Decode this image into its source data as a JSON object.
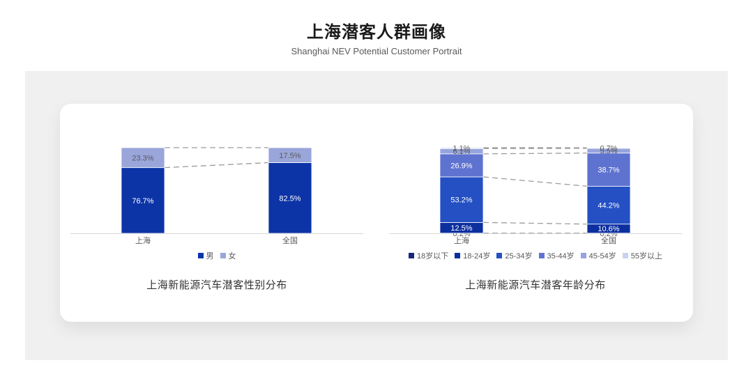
{
  "page": {
    "title": "上海潜客人群画像",
    "subtitle": "Shanghai NEV Potential Customer Portrait"
  },
  "theme": {
    "band_background": "#f0f0f1",
    "card_background": "#ffffff",
    "axis_color": "#d6d6d6",
    "dash_line_color": "#9c9c9c",
    "category_label_color": "#595959",
    "legend_text_color": "#595959",
    "caption_color": "#333333"
  },
  "chart_data": [
    {
      "type": "bar",
      "stacked": true,
      "title": "上海新能源汽车潜客性别分布",
      "categories": [
        "上海",
        "全国"
      ],
      "series": [
        {
          "name": "男",
          "values": [
            76.7,
            82.5
          ],
          "color": "#0d34a6",
          "label_color": "#ffffff"
        },
        {
          "name": "女",
          "values": [
            23.3,
            17.5
          ],
          "color": "#9aa6da",
          "label_color": "#595959"
        }
      ],
      "ylim": [
        0,
        100
      ],
      "value_suffix": "%",
      "grid": false,
      "legend_position": "bottom",
      "connector_lines": "dashed between cumulative segment boundaries"
    },
    {
      "type": "bar",
      "stacked": true,
      "title": "上海新能源汽车潜客年龄分布",
      "categories": [
        "上海",
        "全国"
      ],
      "series": [
        {
          "name": "18岁以下",
          "values": [
            0.2,
            0.2
          ],
          "color": "#16277d",
          "label_color": "#595959"
        },
        {
          "name": "18-24岁",
          "values": [
            12.5,
            10.6
          ],
          "color": "#0c2fa0",
          "label_color": "#ffffff"
        },
        {
          "name": "25-34岁",
          "values": [
            53.2,
            44.2
          ],
          "color": "#2450c4",
          "label_color": "#ffffff"
        },
        {
          "name": "35-44岁",
          "values": [
            26.9,
            38.7
          ],
          "color": "#5e72d0",
          "label_color": "#ffffff"
        },
        {
          "name": "45-54岁",
          "values": [
            6.1,
            5.5
          ],
          "color": "#96a4de",
          "label_color": "#595959"
        },
        {
          "name": "55岁以上",
          "values": [
            1.1,
            0.7
          ],
          "color": "#c9d2ee",
          "label_color": "#595959"
        }
      ],
      "ylim": [
        0,
        100
      ],
      "value_suffix": "%",
      "grid": false,
      "legend_position": "bottom",
      "connector_lines": "dashed between cumulative segment boundaries"
    }
  ]
}
